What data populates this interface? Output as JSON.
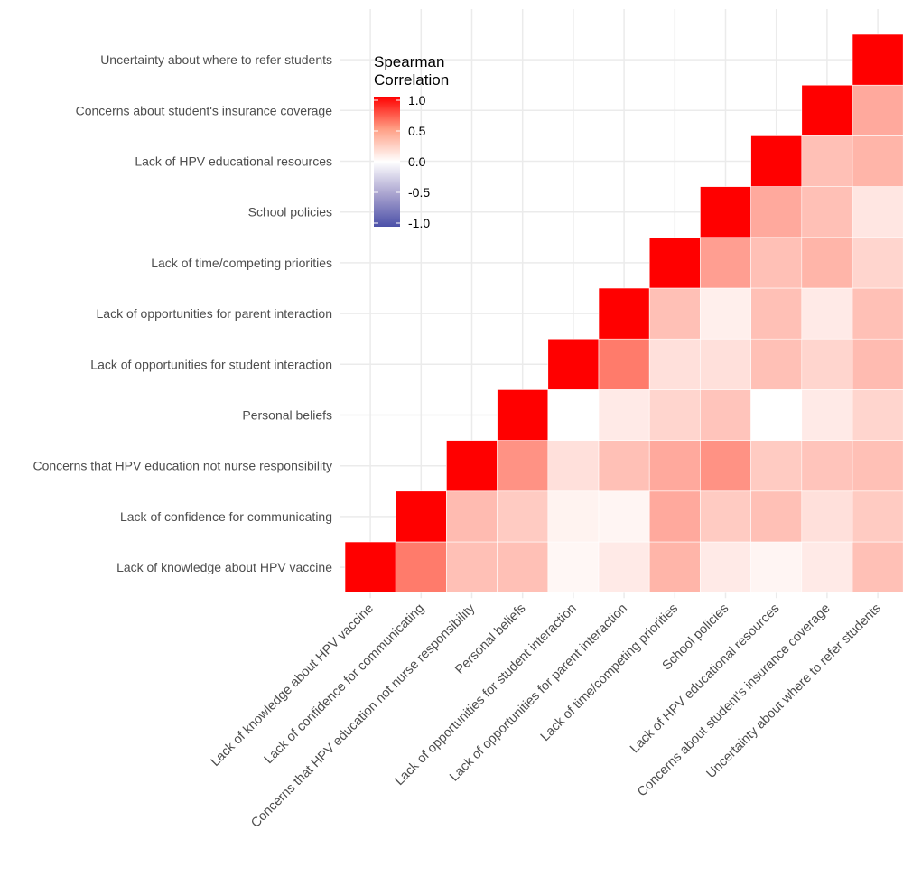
{
  "chart_data": {
    "type": "heatmap",
    "title": "",
    "xlabel": "",
    "ylabel": "",
    "categories": [
      "Lack of knowledge about HPV vaccine",
      "Lack of confidence for communicating",
      "Concerns that HPV education not nurse responsibility",
      "Personal beliefs",
      "Lack of opportunities for student interaction",
      "Lack of opportunities for parent interaction",
      "Lack of time/competing priorities",
      "School policies",
      "Lack of HPV educational resources",
      "Concerns about student's insurance coverage",
      "Uncertainty about where to refer students"
    ],
    "y_labels": [
      "Lack of knowledge about HPV vaccine",
      "Lack of confidence  for  communicating",
      "Concerns that HPV education not nurse responsibility",
      "Personal beliefs",
      "Lack of opportunities for student interaction",
      "Lack of opportunities for parent interaction",
      "Lack of time/competing priorities",
      "School policies",
      "Lack of HPV educational resources",
      "Concerns  about  student's insurance coverage",
      "Uncertainty about where to refer students"
    ],
    "triangle": "upper",
    "matrix": [
      [
        1.0,
        0.6,
        0.3,
        0.3,
        0.04,
        0.1,
        0.35,
        0.1,
        0.05,
        0.1,
        0.3
      ],
      [
        null,
        1.0,
        0.32,
        0.25,
        0.06,
        0.05,
        0.4,
        0.25,
        0.3,
        0.15,
        0.25
      ],
      [
        null,
        null,
        1.0,
        0.5,
        0.15,
        0.3,
        0.4,
        0.5,
        0.25,
        0.28,
        0.3
      ],
      [
        null,
        null,
        null,
        1.0,
        0.0,
        0.1,
        0.2,
        0.28,
        0.0,
        0.1,
        0.2
      ],
      [
        null,
        null,
        null,
        null,
        1.0,
        0.6,
        0.15,
        0.15,
        0.3,
        0.2,
        0.32
      ],
      [
        null,
        null,
        null,
        null,
        null,
        1.0,
        0.3,
        0.08,
        0.3,
        0.1,
        0.3
      ],
      [
        null,
        null,
        null,
        null,
        null,
        null,
        1.0,
        0.45,
        0.3,
        0.35,
        0.2
      ],
      [
        null,
        null,
        null,
        null,
        null,
        null,
        null,
        1.0,
        0.4,
        0.3,
        0.12
      ],
      [
        null,
        null,
        null,
        null,
        null,
        null,
        null,
        null,
        1.0,
        0.3,
        0.35
      ],
      [
        null,
        null,
        null,
        null,
        null,
        null,
        null,
        null,
        null,
        1.0,
        0.4
      ],
      [
        null,
        null,
        null,
        null,
        null,
        null,
        null,
        null,
        null,
        null,
        1.0
      ]
    ],
    "color_scale": {
      "low": "#4B50A8",
      "mid": "#FFFFFF",
      "high": "#FF0000",
      "limits": [
        -1,
        1
      ]
    },
    "legend": {
      "title_line1": "Spearman",
      "title_line2": "Correlation",
      "ticks": [
        "1.0",
        "0.5",
        "0.0",
        "-0.5",
        "-1.0"
      ],
      "placement": "top-left"
    },
    "grid": true
  }
}
